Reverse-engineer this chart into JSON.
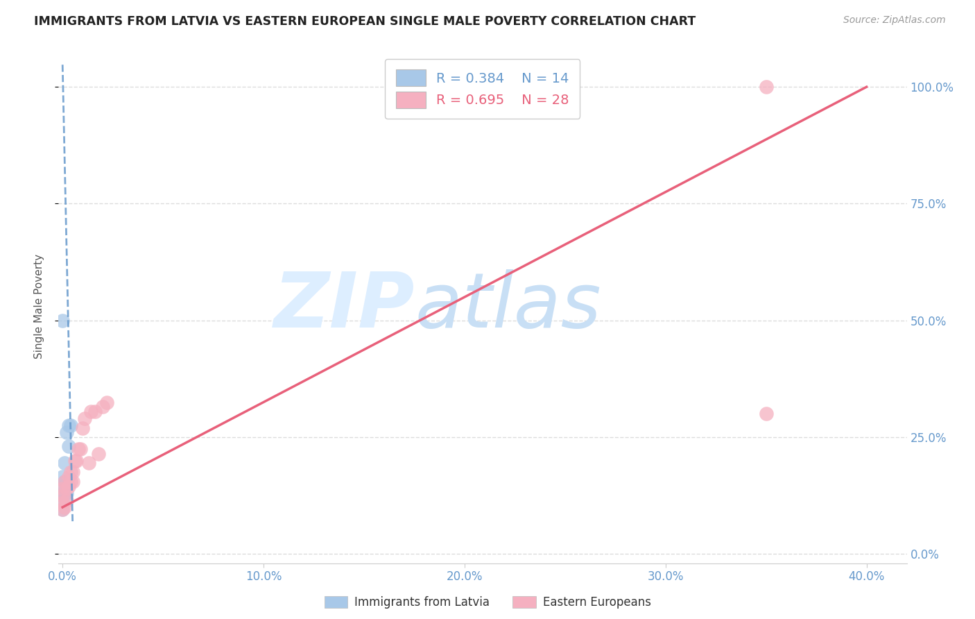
{
  "title": "IMMIGRANTS FROM LATVIA VS EASTERN EUROPEAN SINGLE MALE POVERTY CORRELATION CHART",
  "source": "Source: ZipAtlas.com",
  "ylabel": "Single Male Poverty",
  "xlim": [
    -0.002,
    0.42
  ],
  "ylim": [
    -0.02,
    1.08
  ],
  "x_ticks": [
    0.0,
    0.1,
    0.2,
    0.3,
    0.4
  ],
  "x_tick_labels": [
    "0.0%",
    "10.0%",
    "20.0%",
    "30.0%",
    "40.0%"
  ],
  "y_ticks": [
    0.0,
    0.25,
    0.5,
    0.75,
    1.0
  ],
  "y_tick_labels": [
    "0.0%",
    "25.0%",
    "50.0%",
    "75.0%",
    "100.0%"
  ],
  "legend_R": [
    0.384,
    0.695
  ],
  "legend_N": [
    14,
    28
  ],
  "blue_scatter_color": "#a8c8e8",
  "pink_scatter_color": "#f5b0c0",
  "blue_line_color": "#6699cc",
  "pink_line_color": "#e8607a",
  "tick_color": "#6699cc",
  "grid_color": "#dddddd",
  "watermark_color": "#ddeeff",
  "legend_blue_text": "#6699cc",
  "legend_pink_text": "#e8607a",
  "latvia_x": [
    0.0,
    0.0,
    0.0,
    0.0,
    0.0,
    0.001,
    0.001,
    0.001,
    0.002,
    0.002,
    0.003,
    0.003,
    0.004,
    0.0
  ],
  "latvia_y": [
    0.095,
    0.115,
    0.13,
    0.145,
    0.165,
    0.13,
    0.155,
    0.195,
    0.13,
    0.26,
    0.23,
    0.275,
    0.275,
    0.5
  ],
  "eastern_x": [
    0.0,
    0.0,
    0.0,
    0.0,
    0.001,
    0.001,
    0.002,
    0.002,
    0.003,
    0.003,
    0.004,
    0.004,
    0.005,
    0.005,
    0.006,
    0.007,
    0.008,
    0.009,
    0.01,
    0.011,
    0.013,
    0.014,
    0.016,
    0.018,
    0.02,
    0.022,
    0.35,
    0.35
  ],
  "eastern_y": [
    0.095,
    0.11,
    0.125,
    0.14,
    0.1,
    0.155,
    0.115,
    0.14,
    0.145,
    0.165,
    0.155,
    0.175,
    0.155,
    0.175,
    0.2,
    0.2,
    0.225,
    0.225,
    0.27,
    0.29,
    0.195,
    0.305,
    0.305,
    0.215,
    0.315,
    0.325,
    0.3,
    1.0
  ],
  "pink_line_x0": 0.0,
  "pink_line_y0": 0.1,
  "pink_line_x1": 0.4,
  "pink_line_y1": 1.0,
  "blue_line_x0": 0.005,
  "blue_line_y0": 0.07,
  "blue_line_x1": 0.0,
  "blue_line_y1": 1.05
}
